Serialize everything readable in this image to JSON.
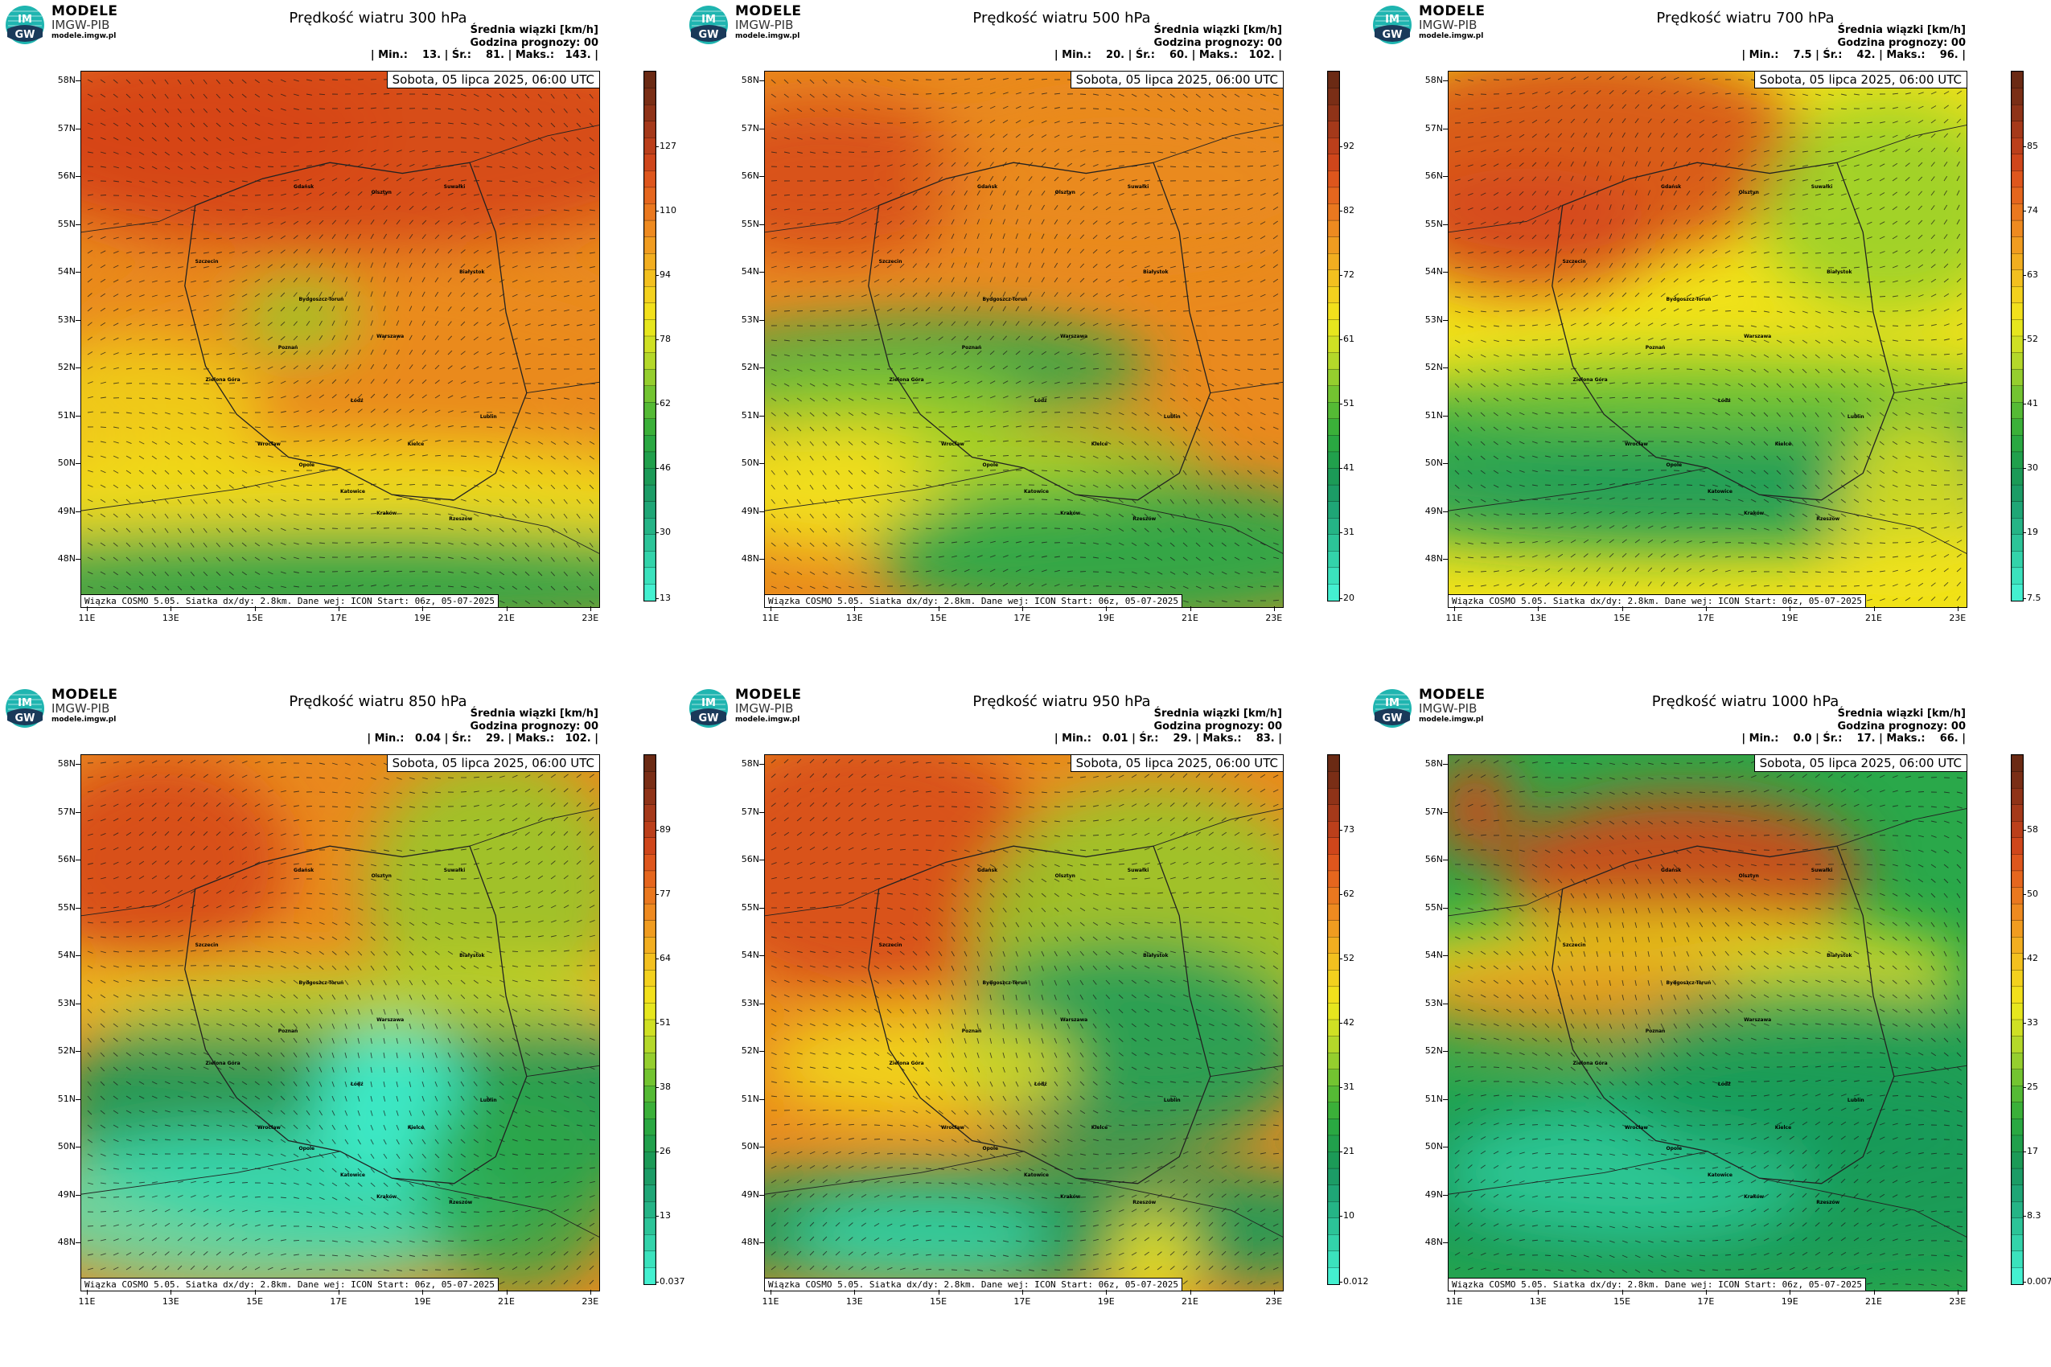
{
  "logo": {
    "badge": "IM GW",
    "title": "MODELE",
    "subtitle": "IMGW-PIB",
    "url": "modele.imgw.pl"
  },
  "common": {
    "stats_heading": "Średnia wiązki [km/h]",
    "forecast_hour": "Godzina prognozy: 00",
    "date_label": "Sobota, 05 lipca 2025, 06:00 UTC",
    "footer": "Wiązka COSMO 5.05. Siatka dx/dy: 2.8km. Dane wej: ICON Start: 06z, 05-07-2025",
    "lat_labels": [
      "58N",
      "57N",
      "56N",
      "55N",
      "54N",
      "53N",
      "52N",
      "51N",
      "50N",
      "49N",
      "48N"
    ],
    "lon_labels": [
      "11E",
      "13E",
      "15E",
      "17E",
      "19E",
      "21E",
      "23E"
    ],
    "cities": [
      "Gdańsk",
      "Olsztyn",
      "Suwałki",
      "Białystok",
      "Szczecin",
      "Bydgoszcz-Toruń",
      "Poznań",
      "Warszawa",
      "Zielona Góra",
      "Łódź",
      "Lublin",
      "Wrocław",
      "Opole",
      "Kielce",
      "Katowice",
      "Kraków",
      "Rzeszów"
    ]
  },
  "panels": [
    {
      "title": "Prędkość wiatru 300 hPa",
      "stats": "| Min.:    13. | Śr.:    81. | Maks.:   143. |",
      "colorbar_ticks": [
        "127",
        "110",
        "94",
        "78",
        "62",
        "46",
        "30",
        "13"
      ]
    },
    {
      "title": "Prędkość wiatru 500 hPa",
      "stats": "| Min.:    20. | Śr.:    60. | Maks.:   102. |",
      "colorbar_ticks": [
        "92",
        "82",
        "72",
        "61",
        "51",
        "41",
        "31",
        "20"
      ]
    },
    {
      "title": "Prędkość wiatru 700 hPa",
      "stats": "| Min.:    7.5 | Śr.:    42. | Maks.:    96. |",
      "colorbar_ticks": [
        "85",
        "74",
        "63",
        "52",
        "41",
        "30",
        "19",
        "7.5"
      ]
    },
    {
      "title": "Prędkość wiatru 850 hPa",
      "stats": "| Min.:   0.04 | Śr.:    29. | Maks.:   102. |",
      "colorbar_ticks": [
        "89",
        "77",
        "64",
        "51",
        "38",
        "26",
        "13",
        "0.037"
      ]
    },
    {
      "title": "Prędkość wiatru 950 hPa",
      "stats": "| Min.:   0.01 | Śr.:    29. | Maks.:    83. |",
      "colorbar_ticks": [
        "73",
        "62",
        "52",
        "42",
        "31",
        "21",
        "10",
        "0.012"
      ]
    },
    {
      "title": "Prędkość wiatru 1000 hPa",
      "stats": "| Min.:    0.0 | Śr.:    17. | Maks.:    66. |",
      "colorbar_ticks": [
        "58",
        "50",
        "42",
        "33",
        "25",
        "17",
        "8.3",
        "0.0075"
      ]
    }
  ],
  "colors": {
    "dark": "#6b2a14",
    "red": "#d5451a",
    "orange": "#ea8a1e",
    "yellow": "#f1e21a",
    "lightgreen": "#8fce2a",
    "green": "#2aa84a",
    "darkgreen": "#199a5a",
    "cyan": "#3ff0d0"
  }
}
